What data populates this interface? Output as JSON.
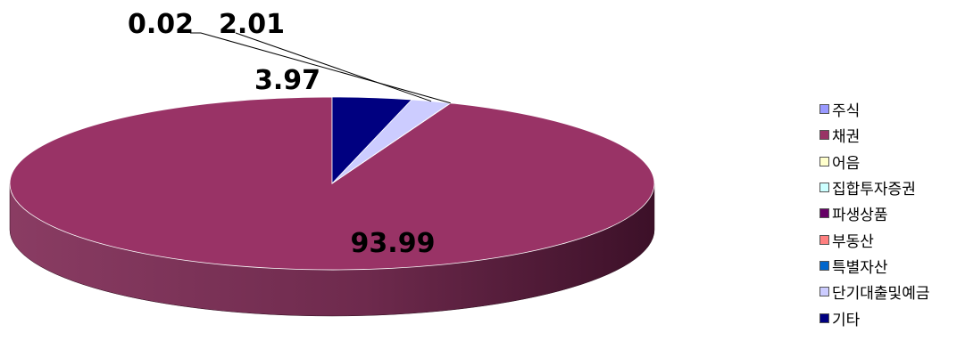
{
  "chart_data": {
    "type": "pie",
    "style": "3d",
    "categories": [
      "주식",
      "채권",
      "어음",
      "집합투자증권",
      "파생상품",
      "부동산",
      "특별자산",
      "단기대출및예금",
      "기타"
    ],
    "values": [
      0,
      93.99,
      0,
      0,
      0.02,
      0,
      0,
      2.01,
      3.97
    ],
    "colors": [
      "#9999ff",
      "#993366",
      "#ffffcc",
      "#ccffff",
      "#660066",
      "#ff8080",
      "#0066cc",
      "#ccccff",
      "#000080"
    ],
    "data_labels": [
      "",
      "93.99",
      "",
      "",
      "0.02",
      "",
      "",
      "2.01",
      "3.97"
    ],
    "legend_position": "right"
  }
}
